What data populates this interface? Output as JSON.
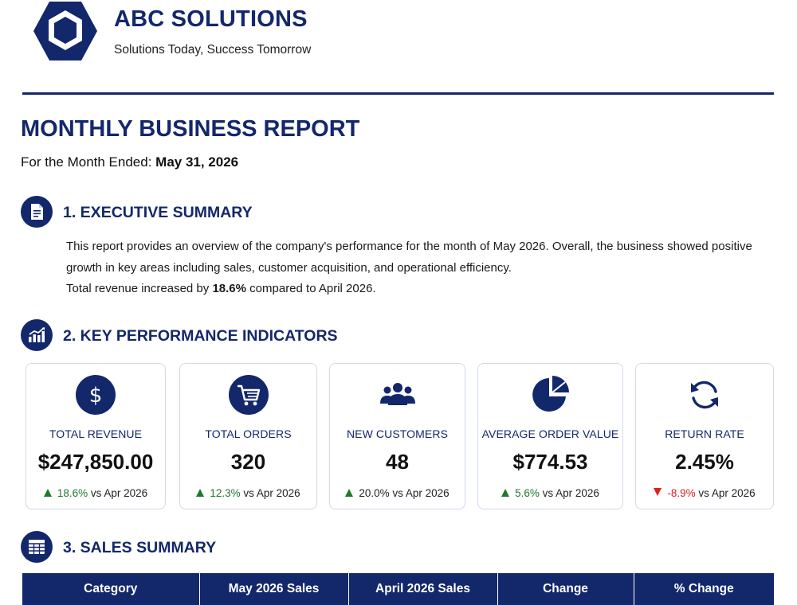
{
  "header": {
    "company_name": "ABC SOLUTIONS",
    "tagline": "Solutions Today, Success Tomorrow",
    "logo_icon": "hexagon-logo-icon"
  },
  "report": {
    "title": "MONTHLY BUSINESS REPORT",
    "date_prefix": "For the Month Ended: ",
    "date_value": "May 31, 2026"
  },
  "sections": {
    "executive_summary": {
      "title": "1. EXECUTIVE SUMMARY",
      "icon": "document-icon",
      "paragraph1": "This report provides an overview of the company's performance for the month of May 2026. Overall, the business showed positive growth in key areas including sales, customer acquisition, and operational efficiency.",
      "paragraph2_prefix": "Total revenue increased by ",
      "paragraph2_bold": "18.6%",
      "paragraph2_suffix": " compared to April 2026."
    },
    "kpi": {
      "title": "2. KEY PERFORMANCE INDICATORS",
      "icon": "bar-chart-icon"
    },
    "sales": {
      "title": "3. SALES SUMMARY",
      "icon": "table-icon"
    }
  },
  "kpis": [
    {
      "label": "TOTAL REVENUE",
      "value": "$247,850.00",
      "change": "18.6%",
      "compare": " vs Apr 2026",
      "direction": "up",
      "icon": "dollar-icon"
    },
    {
      "label": "TOTAL ORDERS",
      "value": "320",
      "change": "12.3%",
      "compare": " vs Apr 2026",
      "direction": "up",
      "icon": "shopping-cart-icon"
    },
    {
      "label": "NEW CUSTOMERS",
      "value": "48",
      "change": "20.0%",
      "compare": " vs Apr 2026",
      "direction": "up",
      "icon": "users-icon"
    },
    {
      "label": "AVERAGE ORDER VALUE",
      "value": "$774.53",
      "change": "5.6%",
      "compare": " vs Apr 2026",
      "direction": "up",
      "icon": "pie-chart-icon"
    },
    {
      "label": "RETURN RATE",
      "value": "2.45%",
      "change": "-8.9%",
      "compare": " vs Apr 2026",
      "direction": "down",
      "icon": "refresh-icon"
    }
  ],
  "sales_table": {
    "headers": [
      "Category",
      "May 2026 Sales",
      "April 2026 Sales",
      "Change",
      "% Change"
    ]
  },
  "colors": {
    "brand_navy": "#13276b",
    "positive": "#1d7a2a",
    "negative": "#e01e1e"
  }
}
